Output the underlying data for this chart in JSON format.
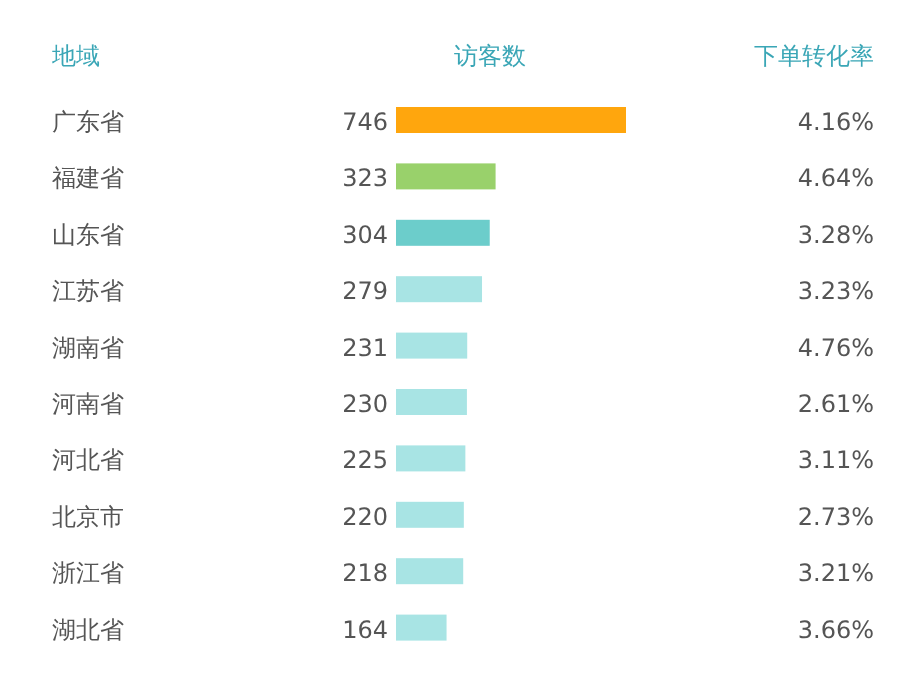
{
  "chart_data": {
    "type": "bar",
    "orientation": "horizontal",
    "ylabel": "地域",
    "categories": [
      "广东省",
      "福建省",
      "山东省",
      "江苏省",
      "湖南省",
      "河南省",
      "河北省",
      "北京市",
      "浙江省",
      "湖北省"
    ],
    "series": [
      {
        "name": "访客数",
        "values": [
          746,
          323,
          304,
          279,
          231,
          230,
          225,
          220,
          218,
          164
        ],
        "colors": [
          "#ffa60d",
          "#99d16b",
          "#6ccdcb",
          "#a8e4e4",
          "#a8e4e4",
          "#a8e4e4",
          "#a8e4e4",
          "#a8e4e4",
          "#a8e4e4",
          "#a8e4e4"
        ]
      }
    ],
    "data_labels": true,
    "annotations": [
      "下单转化率",
      "4.16%",
      "4.64%",
      "3.28%",
      "3.23%",
      "4.76%",
      "2.61%",
      "3.11%",
      "2.73%",
      "3.21%",
      "3.66%"
    ]
  }
}
